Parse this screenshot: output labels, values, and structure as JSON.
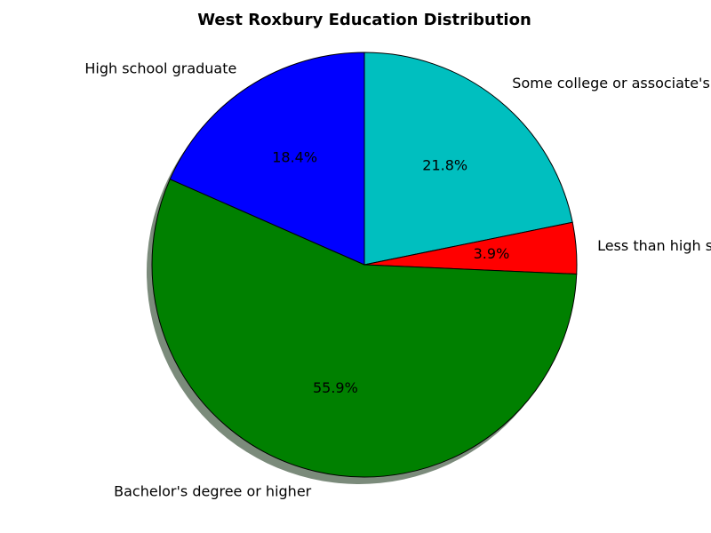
{
  "chart_data": {
    "type": "pie",
    "title": "West Roxbury Education Distribution",
    "slices": [
      {
        "label": "Some college or associate's degree",
        "value": 21.8,
        "pct_label": "21.8%",
        "color": "#00bfbf"
      },
      {
        "label": "Less than high school",
        "value": 3.9,
        "pct_label": "3.9%",
        "color": "#ff0000"
      },
      {
        "label": "Bachelor's degree or higher",
        "value": 55.9,
        "pct_label": "55.9%",
        "color": "#008000"
      },
      {
        "label": "High school graduate",
        "value": 18.4,
        "pct_label": "18.4%",
        "color": "#0000ff"
      }
    ],
    "start_angle_deg": 90,
    "direction": "clockwise",
    "shadow": true,
    "legend": "none"
  }
}
